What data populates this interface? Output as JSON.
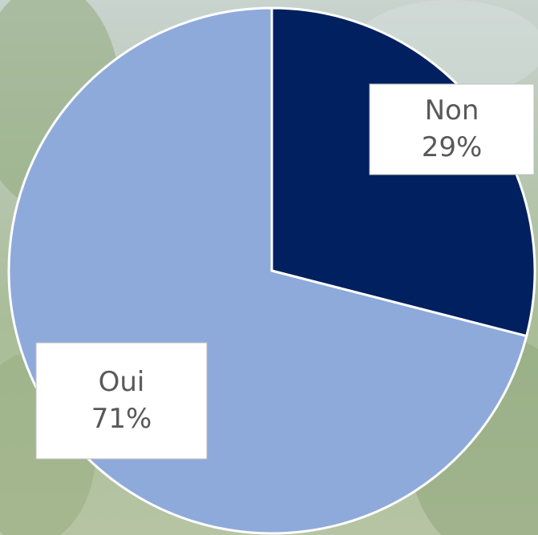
{
  "chart_data": {
    "type": "pie",
    "categories": [
      "Non",
      "Oui"
    ],
    "values": [
      29,
      71
    ],
    "value_labels": [
      "29%",
      "71%"
    ],
    "colors": [
      "#002060",
      "#8eaadb"
    ]
  }
}
